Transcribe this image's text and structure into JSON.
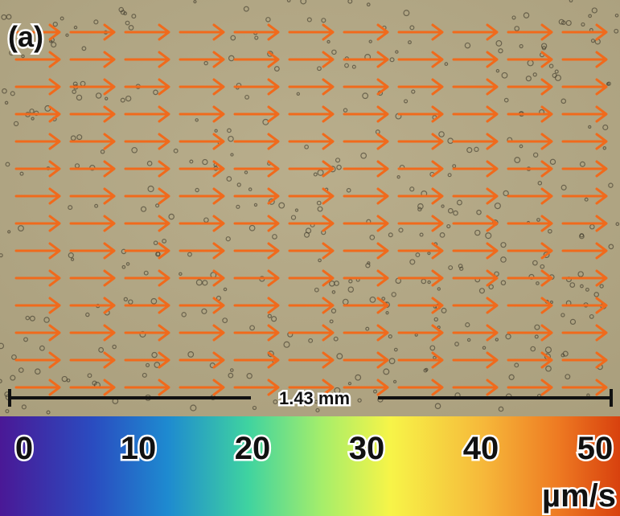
{
  "panel_label": "(a)",
  "scale_bar": {
    "label": "1.43 mm"
  },
  "colorbar": {
    "ticks": [
      0,
      10,
      20,
      30,
      40,
      50
    ],
    "unit": "µm/s"
  }
}
